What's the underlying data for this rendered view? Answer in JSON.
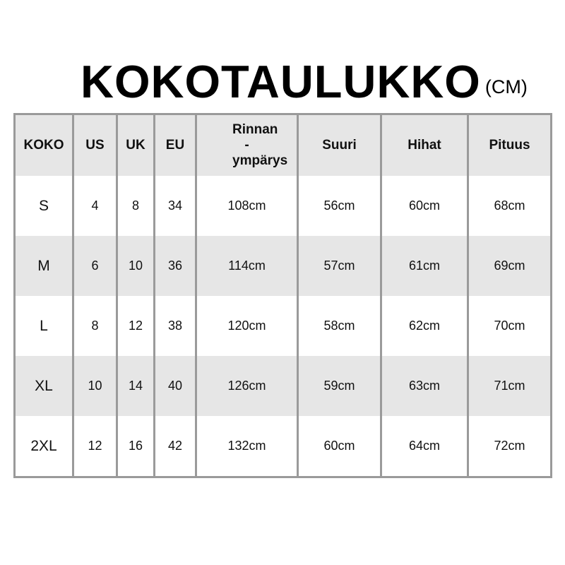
{
  "title": {
    "main": "KOKOTAULUKKO",
    "unit": "(CM)"
  },
  "table": {
    "headers": [
      "KOKO",
      "US",
      "UK",
      "EU",
      "Rinnan -ympärys",
      "Suuri",
      "Hihat",
      "Pituus"
    ],
    "rows": [
      [
        "S",
        "4",
        "8",
        "34",
        "108cm",
        "56cm",
        "60cm",
        "68cm"
      ],
      [
        "M",
        "6",
        "10",
        "36",
        "114cm",
        "57cm",
        "61cm",
        "69cm"
      ],
      [
        "L",
        "8",
        "12",
        "38",
        "120cm",
        "58cm",
        "62cm",
        "70cm"
      ],
      [
        "XL",
        "10",
        "14",
        "40",
        "126cm",
        "59cm",
        "63cm",
        "71cm"
      ],
      [
        "2XL",
        "12",
        "16",
        "42",
        "132cm",
        "60cm",
        "64cm",
        "72cm"
      ]
    ]
  },
  "colors": {
    "border": "#9a9a9a",
    "stripe": "#e6e6e6"
  }
}
